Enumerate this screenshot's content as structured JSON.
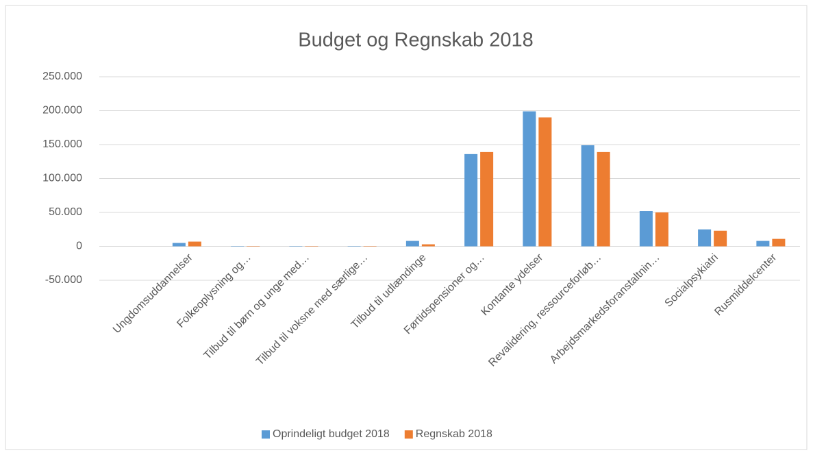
{
  "chart_data": {
    "type": "bar",
    "title": "Budget og Regnskab 2018",
    "categories": [
      null,
      "Ungdomsuddannelser",
      "Folkeoplysning og…",
      "Tilbud til børn og unge med…",
      "Tilbud til voksne med særlige…",
      "Tilbud til udlændinge",
      "Førtidspensioner og…",
      "Kontante ydelser",
      "Revalidering, ressourceforløb…",
      "Arbejdsmarkedsforanstaltnin…",
      "Socialpsykiatri",
      "Rusmiddelcenter"
    ],
    "series": [
      {
        "name": "Oprindeligt budget 2018",
        "color": "#5b9bd5",
        "values": [
          null,
          5000,
          0,
          0,
          0,
          8000,
          136000,
          199000,
          149000,
          52000,
          25000,
          8000
        ]
      },
      {
        "name": "Regnskab 2018",
        "color": "#ed7d31",
        "values": [
          null,
          7000,
          0,
          0,
          0,
          3000,
          139000,
          190000,
          139000,
          50000,
          23000,
          11000
        ]
      }
    ],
    "ylim": [
      -50000,
      250000
    ],
    "yticks": [
      {
        "value": -50000,
        "label": "-50.000"
      },
      0,
      {
        "value": 50000,
        "label": "50.000"
      },
      {
        "value": 100000,
        "label": "100.000"
      },
      {
        "value": 150000,
        "label": "150.000"
      },
      {
        "value": 200000,
        "label": "200.000"
      },
      {
        "value": 250000,
        "label": "250.000"
      }
    ],
    "grid": true,
    "legend": "bottom"
  }
}
